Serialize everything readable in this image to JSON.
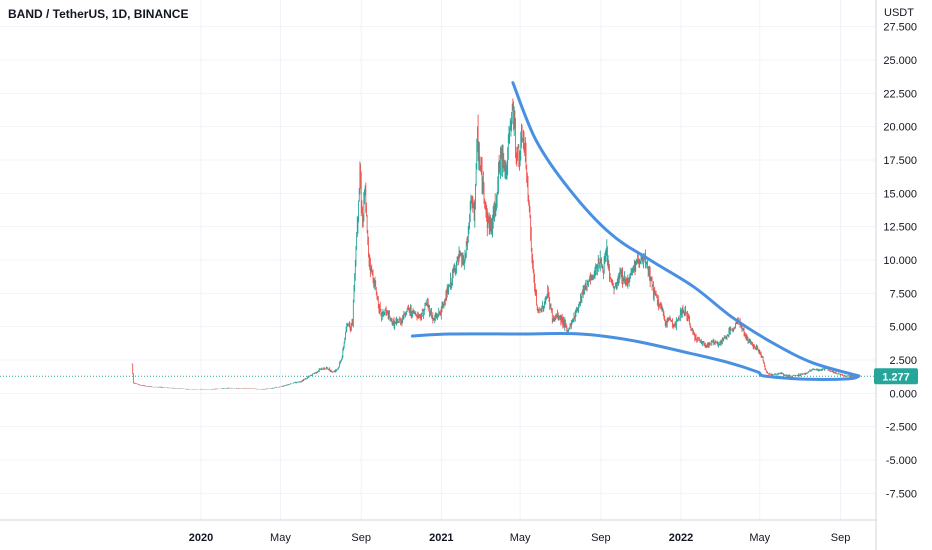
{
  "header": {
    "title": "BAND / TetherUS, 1D, BINANCE"
  },
  "colors": {
    "up": "#26a69a",
    "down": "#ef5350",
    "drawing": "#4a90e2",
    "price_line": "#26a69a",
    "grid": "#f0f3fa",
    "axis_border": "#d1d4dc"
  },
  "chart_data": {
    "type": "line",
    "unit": "USDT",
    "ylim": [
      -9.5,
      29.5
    ],
    "y_ticks": [
      "27.500",
      "25.000",
      "22.500",
      "20.000",
      "17.500",
      "15.000",
      "12.500",
      "10.000",
      "7.500",
      "5.000",
      "2.500",
      "0.000",
      "-2.500",
      "-5.000",
      "-7.500"
    ],
    "x_ticks": [
      {
        "label": "2020",
        "date": "2020-01",
        "bold": true
      },
      {
        "label": "May",
        "date": "2020-05",
        "bold": false
      },
      {
        "label": "Sep",
        "date": "2020-09",
        "bold": false
      },
      {
        "label": "2021",
        "date": "2021-01",
        "bold": true
      },
      {
        "label": "May",
        "date": "2021-05",
        "bold": false
      },
      {
        "label": "Sep",
        "date": "2021-09",
        "bold": false
      },
      {
        "label": "2022",
        "date": "2022-01",
        "bold": true
      },
      {
        "label": "May",
        "date": "2022-05",
        "bold": false
      },
      {
        "label": "Sep",
        "date": "2022-09",
        "bold": false
      }
    ],
    "last_price": "1.277",
    "last_price_value": 1.277,
    "series": [
      {
        "x": [
          "2019-09-18",
          "2019-09-20",
          "2019-10-01",
          "2019-10-15",
          "2019-11-01",
          "2019-11-15",
          "2019-12-01",
          "2019-12-15",
          "2020-01-01",
          "2020-01-15",
          "2020-02-01",
          "2020-02-15",
          "2020-03-01",
          "2020-03-15",
          "2020-04-01",
          "2020-04-15",
          "2020-05-01",
          "2020-05-15",
          "2020-06-01",
          "2020-06-15",
          "2020-07-01",
          "2020-07-10",
          "2020-07-20",
          "2020-07-28",
          "2020-08-03",
          "2020-08-08",
          "2020-08-12",
          "2020-08-16",
          "2020-08-19",
          "2020-08-21",
          "2020-08-24",
          "2020-08-27",
          "2020-08-30",
          "2020-09-03",
          "2020-09-07",
          "2020-09-11",
          "2020-09-15",
          "2020-09-20",
          "2020-09-25",
          "2020-10-01",
          "2020-10-08",
          "2020-10-15",
          "2020-10-22",
          "2020-11-01",
          "2020-11-10",
          "2020-11-20",
          "2020-12-01",
          "2020-12-10",
          "2020-12-20",
          "2021-01-01",
          "2021-01-08",
          "2021-01-15",
          "2021-01-22",
          "2021-01-29",
          "2021-02-05",
          "2021-02-10",
          "2021-02-15",
          "2021-02-20",
          "2021-02-25",
          "2021-03-02",
          "2021-03-07",
          "2021-03-12",
          "2021-03-18",
          "2021-03-24",
          "2021-03-30",
          "2021-04-05",
          "2021-04-10",
          "2021-04-15",
          "2021-04-20",
          "2021-04-25",
          "2021-05-01",
          "2021-05-05",
          "2021-05-10",
          "2021-05-15",
          "2021-05-19",
          "2021-05-23",
          "2021-05-28",
          "2021-06-05",
          "2021-06-12",
          "2021-06-20",
          "2021-06-26",
          "2021-07-05",
          "2021-07-12",
          "2021-07-20",
          "2021-07-28",
          "2021-08-05",
          "2021-08-12",
          "2021-08-20",
          "2021-08-28",
          "2021-09-05",
          "2021-09-10",
          "2021-09-15",
          "2021-09-22",
          "2021-10-01",
          "2021-10-10",
          "2021-10-18",
          "2021-10-25",
          "2021-11-01",
          "2021-11-08",
          "2021-11-15",
          "2021-11-22",
          "2021-12-01",
          "2021-12-08",
          "2021-12-15",
          "2021-12-22",
          "2022-01-01",
          "2022-01-08",
          "2022-01-15",
          "2022-01-22",
          "2022-02-01",
          "2022-02-10",
          "2022-02-20",
          "2022-03-01",
          "2022-03-10",
          "2022-03-20",
          "2022-03-28",
          "2022-04-05",
          "2022-04-12",
          "2022-04-20",
          "2022-04-28",
          "2022-05-05",
          "2022-05-09",
          "2022-05-12",
          "2022-05-20",
          "2022-06-01",
          "2022-06-12",
          "2022-06-20",
          "2022-07-01",
          "2022-07-10",
          "2022-07-20",
          "2022-08-01",
          "2022-08-10",
          "2022-08-20",
          "2022-09-01",
          "2022-09-10",
          "2022-09-18",
          "2022-09-24"
        ],
        "y": [
          2.2,
          0.8,
          0.6,
          0.5,
          0.45,
          0.4,
          0.35,
          0.3,
          0.3,
          0.3,
          0.35,
          0.4,
          0.35,
          0.35,
          0.3,
          0.35,
          0.5,
          0.7,
          0.9,
          1.3,
          1.8,
          1.9,
          1.6,
          1.9,
          2.8,
          4.5,
          5.3,
          5.0,
          5.5,
          8.0,
          11.0,
          14.0,
          16.5,
          13.0,
          15.0,
          11.0,
          9.5,
          8.5,
          7.3,
          5.8,
          6.2,
          5.5,
          5.2,
          5.5,
          6.3,
          6.0,
          5.8,
          6.8,
          5.5,
          6.2,
          7.3,
          8.2,
          9.5,
          10.2,
          9.8,
          11.5,
          14.5,
          13.5,
          19.0,
          16.5,
          15.0,
          13.0,
          12.5,
          14.0,
          17.0,
          18.0,
          16.5,
          19.5,
          21.5,
          18.0,
          17.8,
          19.5,
          17.0,
          14.0,
          10.0,
          8.0,
          6.0,
          6.5,
          7.5,
          5.5,
          5.8,
          5.5,
          4.6,
          5.5,
          6.5,
          7.8,
          8.3,
          8.7,
          10.0,
          9.3,
          10.5,
          8.5,
          7.8,
          9.0,
          8.3,
          9.2,
          9.8,
          10.0,
          9.8,
          8.8,
          7.3,
          6.5,
          5.3,
          5.6,
          5.0,
          6.0,
          6.2,
          5.0,
          4.3,
          3.8,
          3.6,
          3.9,
          3.7,
          4.2,
          4.8,
          5.5,
          4.8,
          4.0,
          3.7,
          3.3,
          2.7,
          1.8,
          1.5,
          1.4,
          1.5,
          1.3,
          1.3,
          1.4,
          1.5,
          1.8,
          1.7,
          1.9,
          1.6,
          1.4,
          1.3,
          1.3,
          1.277
        ]
      }
    ],
    "drawings": [
      {
        "name": "descending-trendline",
        "points": [
          [
            "2021-04-20",
            23.3
          ],
          [
            "2021-05-25",
            19.0
          ],
          [
            "2021-07-15",
            15.3
          ],
          [
            "2021-09-15",
            12.0
          ],
          [
            "2021-11-15",
            10.0
          ],
          [
            "2022-01-20",
            8.0
          ],
          [
            "2022-03-20",
            5.7
          ],
          [
            "2022-05-20",
            3.8
          ],
          [
            "2022-07-20",
            2.3
          ],
          [
            "2022-09-29",
            1.3
          ]
        ]
      },
      {
        "name": "base-curve",
        "points": [
          [
            "2020-11-18",
            4.3
          ],
          [
            "2021-01-15",
            4.45
          ],
          [
            "2021-05-01",
            4.45
          ],
          [
            "2021-08-01",
            4.45
          ],
          [
            "2021-10-20",
            3.95
          ],
          [
            "2022-01-15",
            3.0
          ],
          [
            "2022-03-15",
            2.3
          ],
          [
            "2022-04-28",
            1.6
          ],
          [
            "2022-05-08",
            1.3
          ],
          [
            "2022-07-15",
            1.05
          ],
          [
            "2022-09-15",
            1.1
          ],
          [
            "2022-09-29",
            1.3
          ]
        ]
      }
    ]
  }
}
